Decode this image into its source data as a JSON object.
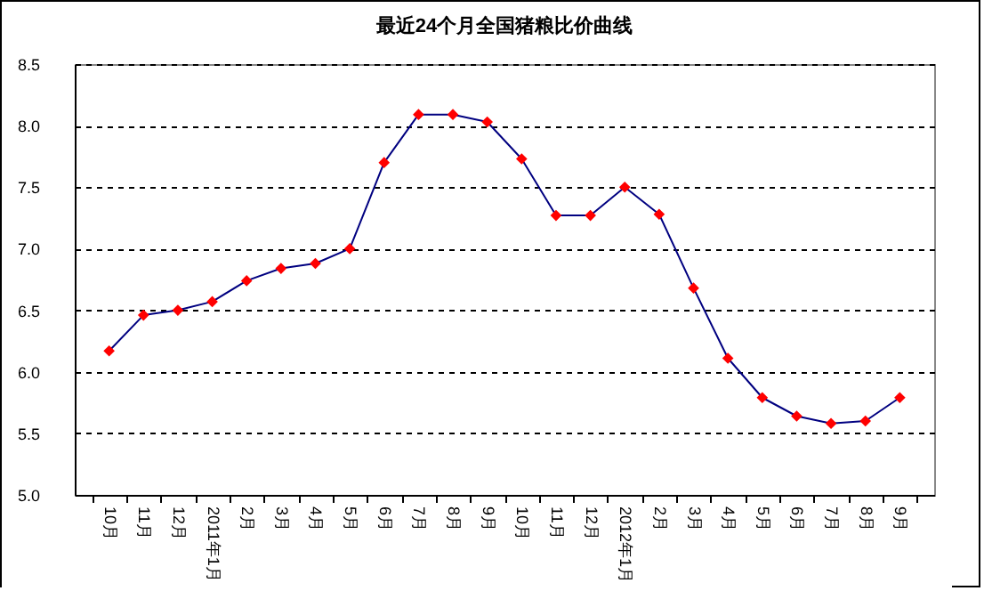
{
  "chart_data": {
    "type": "line",
    "title": "最近24个月全国猪粮比价曲线",
    "categories": [
      "10月",
      "11月",
      "12月",
      "2011年1月",
      "2月",
      "3月",
      "4月",
      "5月",
      "6月",
      "7月",
      "8月",
      "9月",
      "10月",
      "11月",
      "12月",
      "2012年1月",
      "2月",
      "3月",
      "4月",
      "5月",
      "6月",
      "7月",
      "8月",
      "9月"
    ],
    "series": [
      {
        "color": "#000080",
        "values": [
          6.17,
          6.46,
          6.5,
          6.57,
          6.74,
          6.84,
          6.88,
          7.0,
          7.7,
          8.09,
          8.09,
          8.03,
          7.73,
          7.27,
          7.27,
          7.5,
          7.28,
          6.68,
          6.11,
          5.79,
          5.64,
          5.58,
          5.6,
          5.79
        ]
      }
    ],
    "marker": "diamond",
    "grid": "y",
    "line_style": "solid",
    "ylim": [
      5,
      8.5
    ],
    "yticks": [
      {
        "value": 5,
        "label": "5.0"
      },
      {
        "value": 5.5,
        "label": "5.5"
      },
      {
        "value": 6,
        "label": "6.0"
      },
      {
        "value": 6.5,
        "label": "6.5"
      },
      {
        "value": 7,
        "label": "7.0"
      },
      {
        "value": 7.5,
        "label": "7.5"
      },
      {
        "value": 8,
        "label": "8.0"
      },
      {
        "value": 8.5,
        "label": "8.5"
      }
    ]
  }
}
